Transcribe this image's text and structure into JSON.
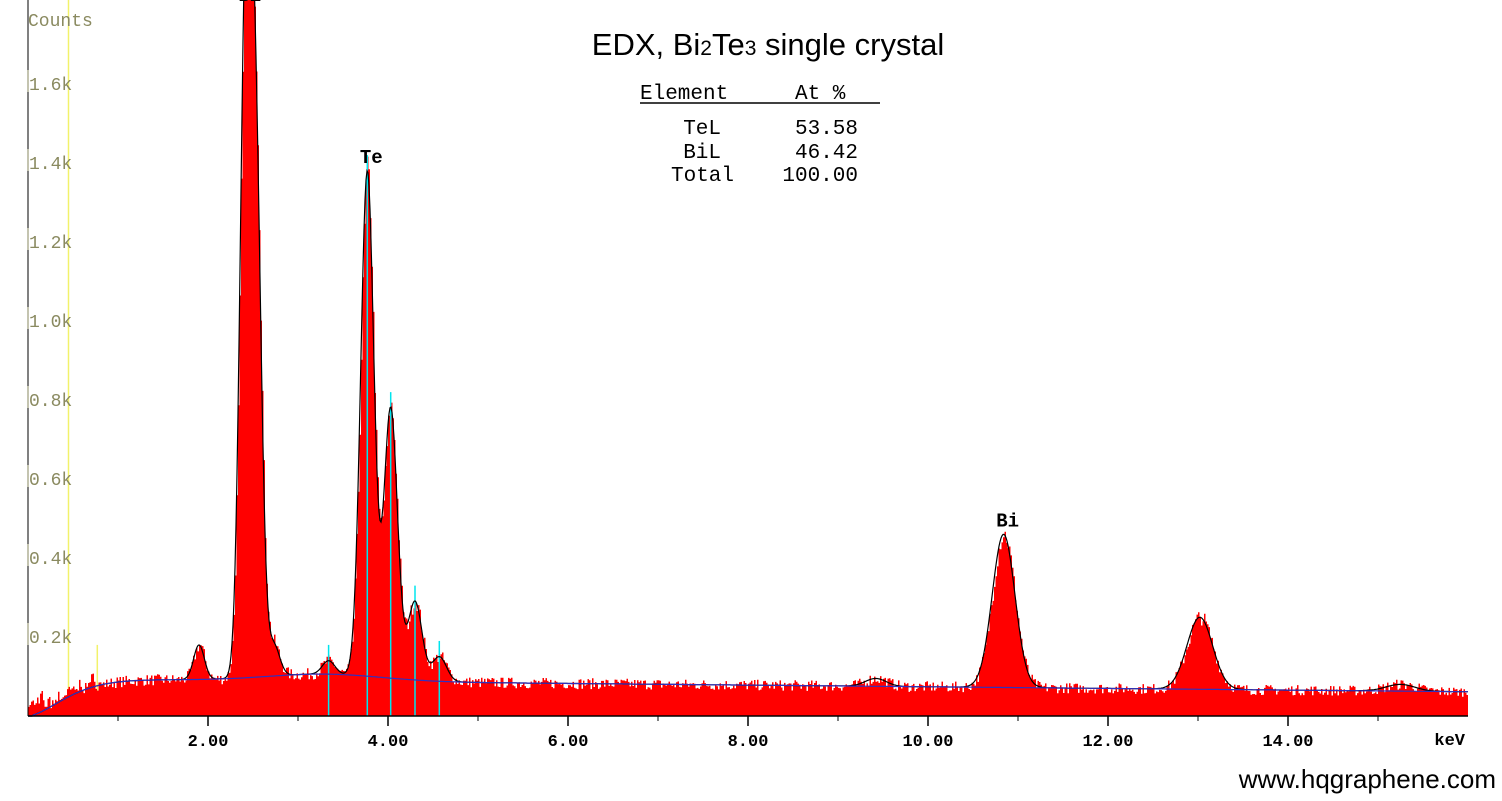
{
  "chart_data": {
    "type": "area",
    "title": "EDX, Bi2Te3 single crystal",
    "title_parts": {
      "a": "EDX, Bi",
      "b": "2",
      "c": "Te",
      "d": "3",
      "e": " single crystal"
    },
    "ylabel": "Counts",
    "xlabel": "keV",
    "xlim": [
      0.0,
      16.0
    ],
    "ylim": [
      0,
      1800
    ],
    "x_ticks": [
      "2.00",
      "4.00",
      "6.00",
      "8.00",
      "10.00",
      "12.00",
      "14.00"
    ],
    "y_ticks": [
      "0.2k",
      "0.4k",
      "0.6k",
      "0.8k",
      "1.0k",
      "1.2k",
      "1.4k",
      "1.6k"
    ],
    "grid": false,
    "colors": {
      "spectrum": "#ff0000",
      "fit": "#000000",
      "background": "#3030c0",
      "lines": "#00e5ee",
      "marker": "#f2f26a",
      "axis_text": "#8a8a60"
    },
    "peaks": [
      {
        "element": "Bi",
        "keV": 2.42,
        "counts": 1790
      },
      {
        "element": "Bi",
        "keV": 2.53,
        "counts": 1330
      },
      {
        "element": "Bi",
        "keV": 2.73,
        "counts": 180
      },
      {
        "element": "Te",
        "keV": 3.77,
        "counts": 1380
      },
      {
        "element": "Te",
        "keV": 4.03,
        "counts": 780
      },
      {
        "element": "Te",
        "keV": 4.3,
        "counts": 290
      },
      {
        "element": "Te",
        "keV": 4.57,
        "counts": 150
      },
      {
        "element": "Te",
        "keV": 3.34,
        "counts": 140
      },
      {
        "element": "Bi",
        "keV": 1.9,
        "counts": 180
      },
      {
        "element": "Bi",
        "keV": 9.42,
        "counts": 95
      },
      {
        "element": "Bi",
        "keV": 10.84,
        "counts": 460
      },
      {
        "element": "Bi",
        "keV": 13.02,
        "counts": 250
      },
      {
        "element": "Bi",
        "keV": 15.25,
        "counts": 80
      }
    ],
    "annotations": [
      {
        "text": "Bi",
        "keV": 2.42,
        "counts": 1790
      },
      {
        "text": "Te",
        "keV": 3.77,
        "counts": 1380
      },
      {
        "text": "Bi",
        "keV": 10.84,
        "counts": 460
      }
    ],
    "table": {
      "headers": [
        "Element",
        "At %"
      ],
      "rows": [
        [
          "TeL",
          "53.58"
        ],
        [
          "BiL",
          "46.42"
        ],
        [
          "Total",
          "100.00"
        ]
      ]
    }
  },
  "watermark": "www.hqgraphene.com"
}
